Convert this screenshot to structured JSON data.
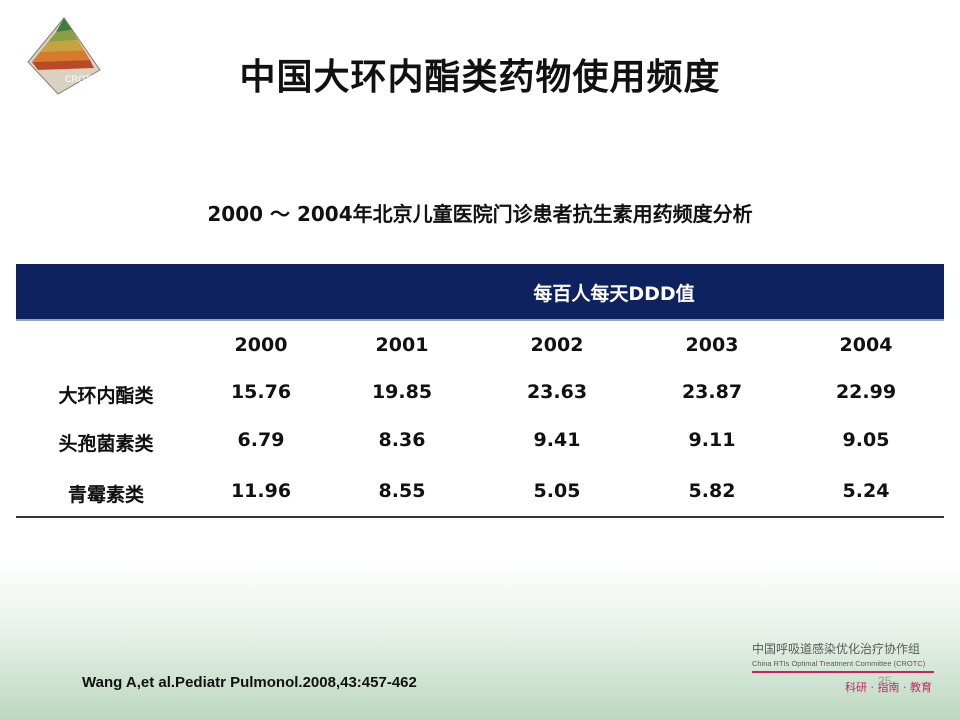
{
  "slide": {
    "title": "中国大环内酯类药物使用频度",
    "subtitle": "2000 ～ 2004年北京儿童医院门诊患者抗生素用药频度分析",
    "logo_text": "CROTC",
    "page_number": "25"
  },
  "table": {
    "unit_header": "每百人每天DDD值",
    "years": [
      "2000",
      "2001",
      "2002",
      "2003",
      "2004"
    ],
    "rows": [
      {
        "label": "大环内酯类",
        "values": [
          "15.76",
          "19.85",
          "23.63",
          "23.87",
          "22.99"
        ]
      },
      {
        "label": "头孢菌素类",
        "values": [
          "6.79",
          "8.36",
          "9.41",
          "9.11",
          "9.05"
        ]
      },
      {
        "label": "青霉素类",
        "values": [
          "11.96",
          "8.55",
          "5.05",
          "5.82",
          "5.24"
        ]
      }
    ]
  },
  "footer": {
    "citation": "Wang A,et al.Pediatr Pulmonol.2008,43:457-462",
    "org_cn": "中国呼吸道感染优化治疗协作组",
    "org_en": "China RTIs Optimal Treatment Committee (CROTC)",
    "motto": "科研 · 指南 · 教育"
  },
  "colors": {
    "header_band": "#0f2260",
    "accent": "#c7245f"
  }
}
